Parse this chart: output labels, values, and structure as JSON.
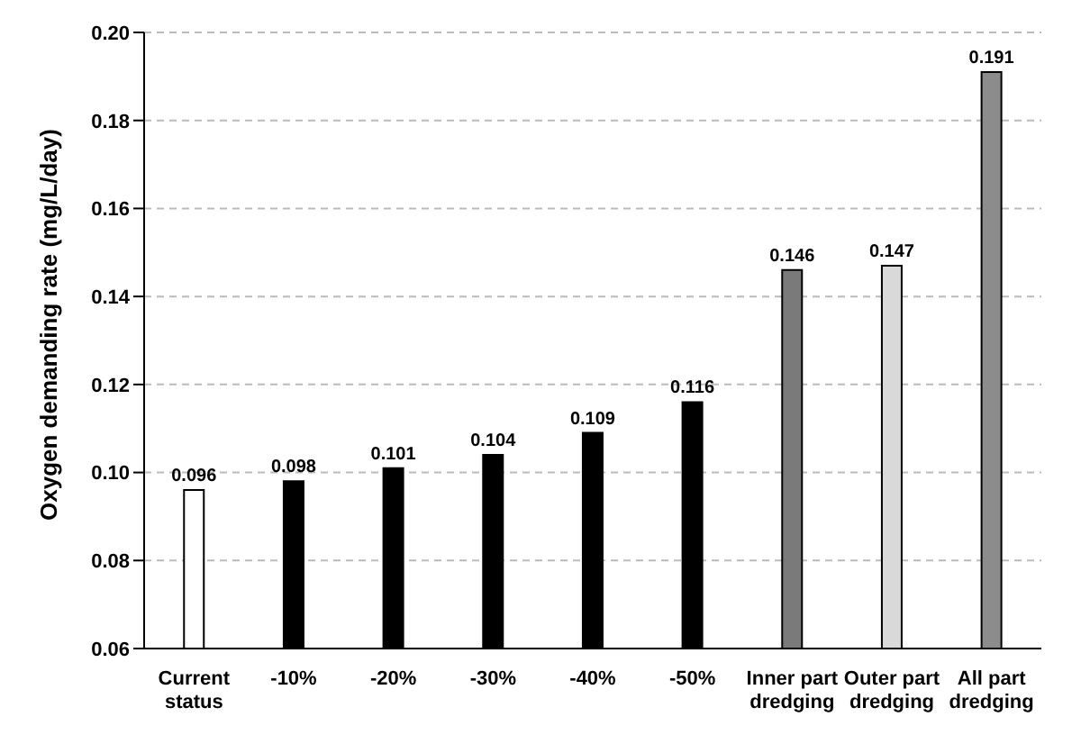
{
  "chart_data": {
    "type": "bar",
    "ylabel": "Oxygen demanding rate (mg/L/day)",
    "categories": [
      "Current status",
      "-10%",
      "-20%",
      "-30%",
      "-40%",
      "-50%",
      "Inner part dredging",
      "Outer part dredging",
      "All part dredging"
    ],
    "values": [
      0.096,
      0.098,
      0.101,
      0.104,
      0.109,
      0.116,
      0.146,
      0.147,
      0.191
    ],
    "colors": [
      "#ffffff",
      "#000000",
      "#000000",
      "#000000",
      "#000000",
      "#000000",
      "#7a7a7a",
      "#d9d9d9",
      "#8c8c8c"
    ],
    "ylim": [
      0.06,
      0.2
    ],
    "yticks": [
      0.06,
      0.08,
      {
        "value": 0.1,
        "label": "0.10"
      },
      0.12,
      0.14,
      0.16,
      0.18,
      {
        "value": 0.2,
        "label": "0.20"
      }
    ],
    "grid": "y",
    "data_labels": true
  }
}
